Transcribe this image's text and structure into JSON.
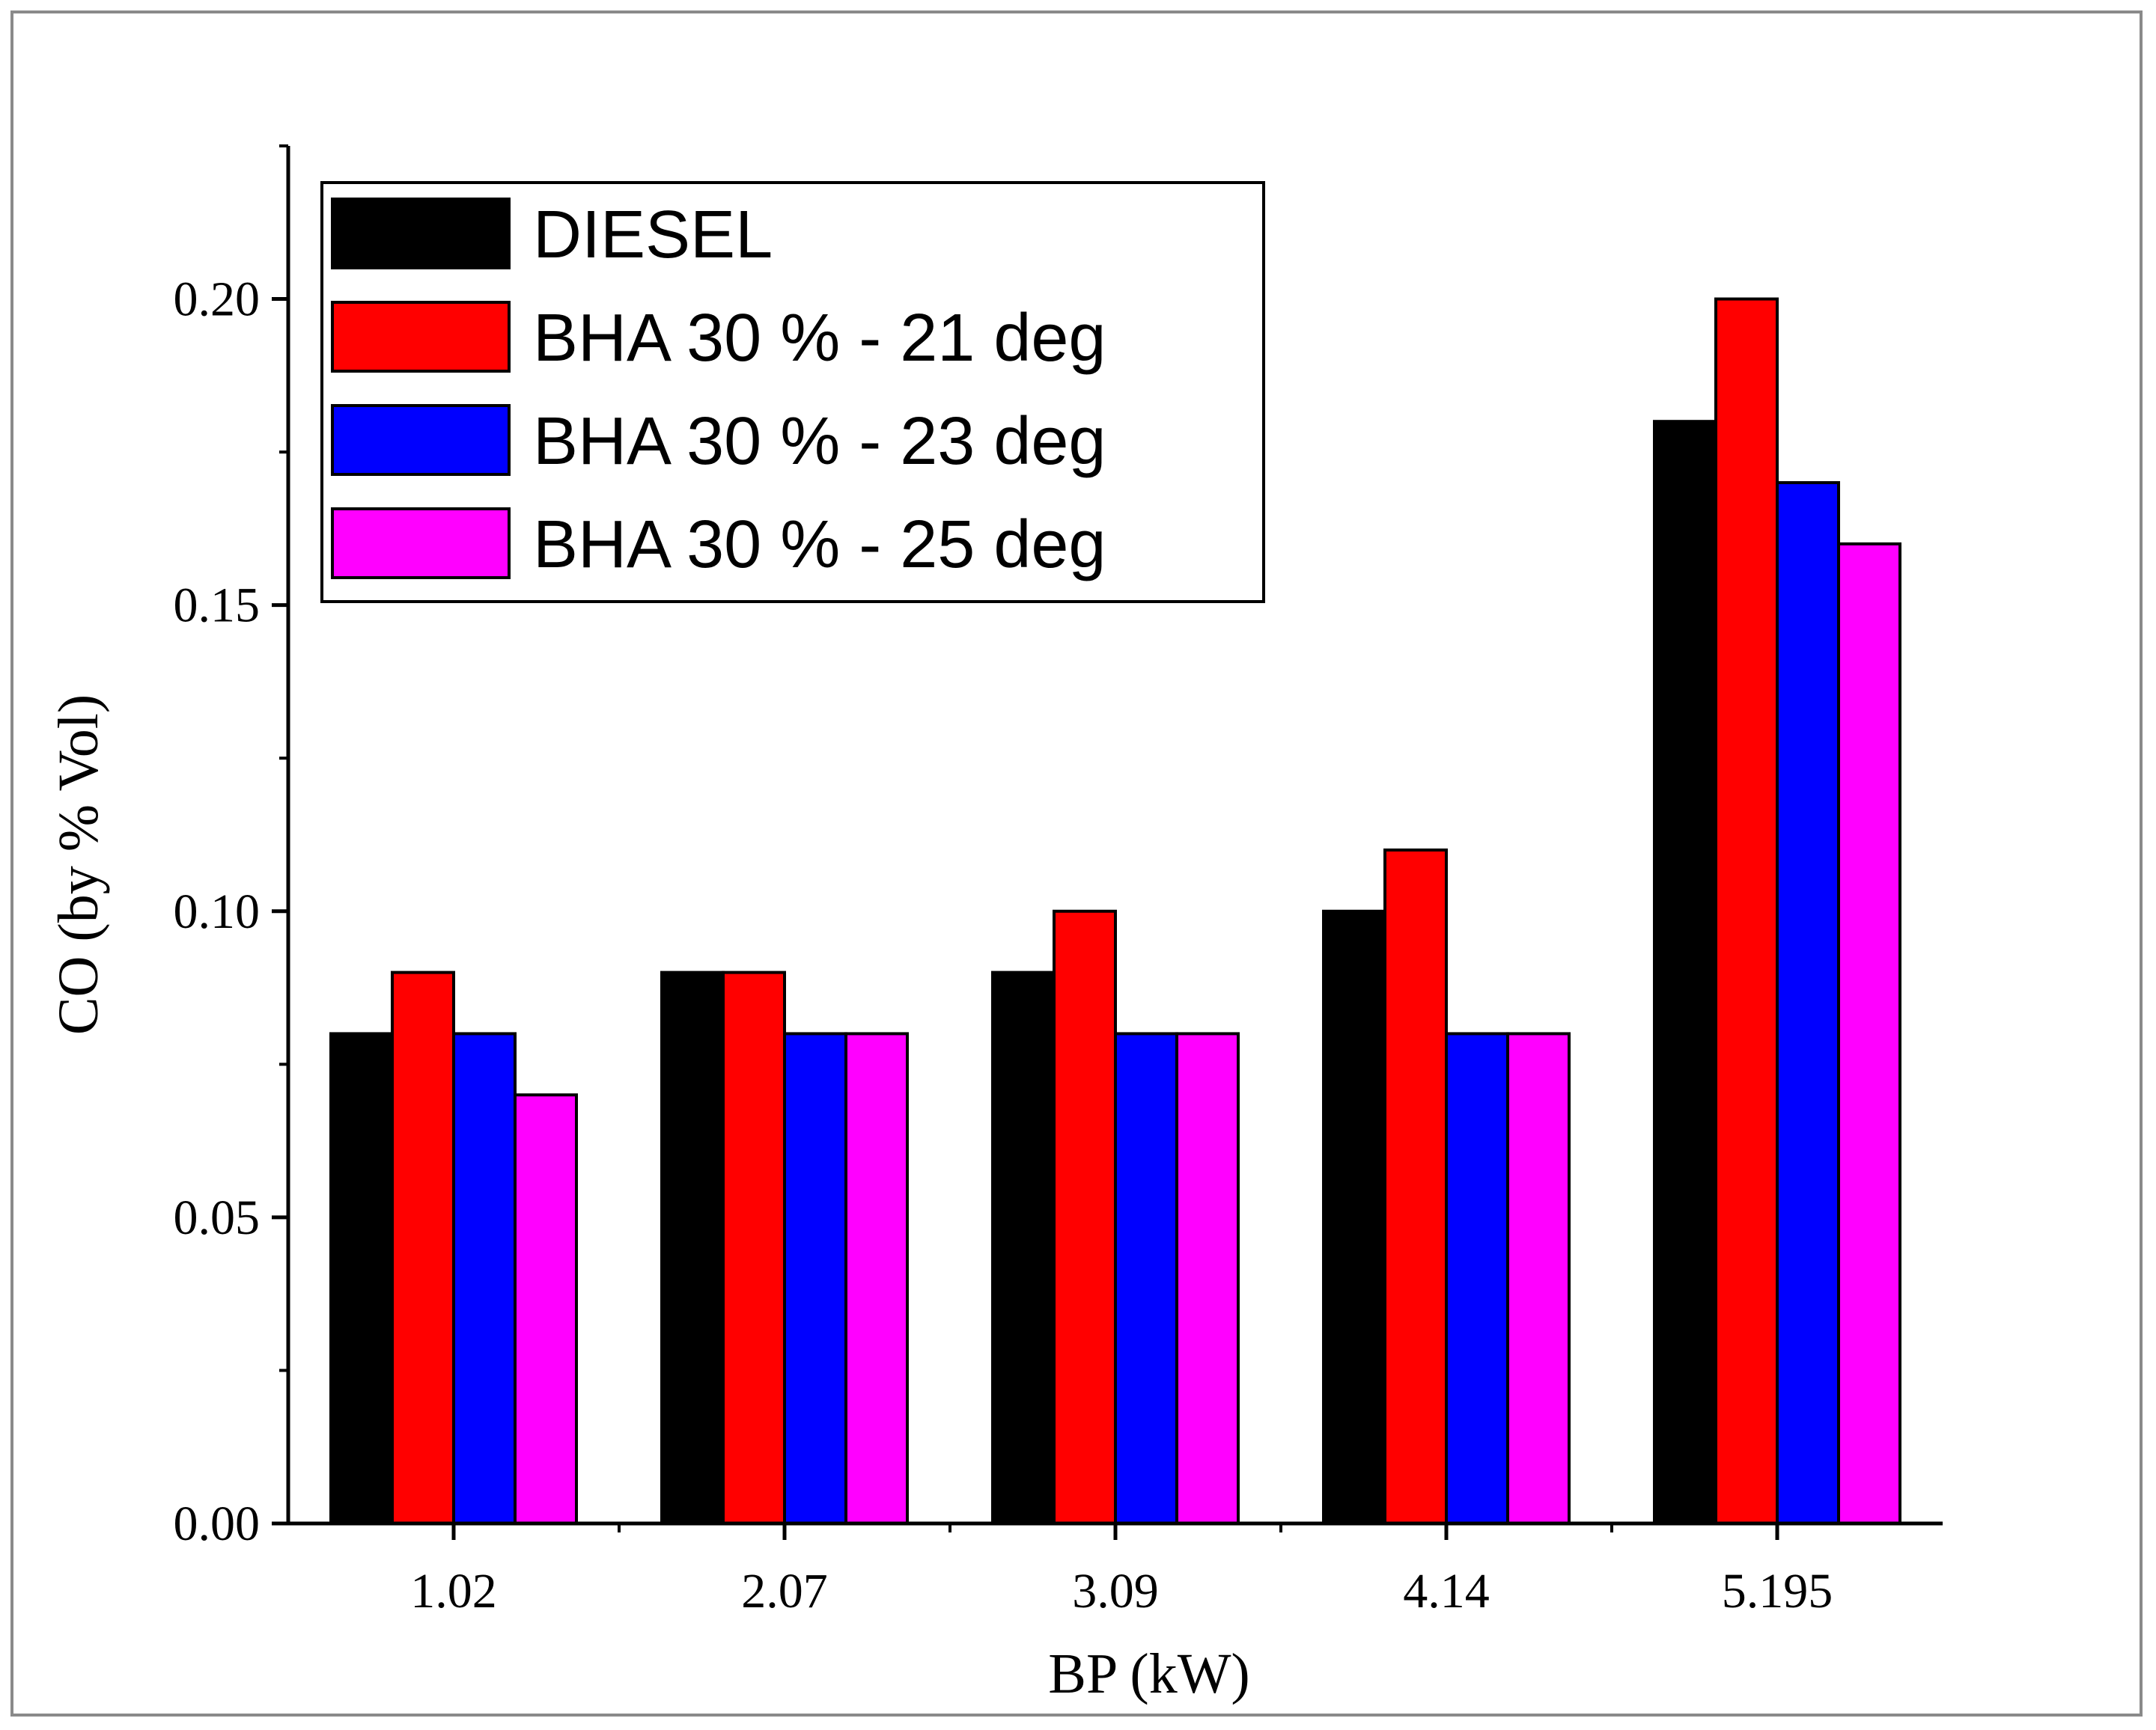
{
  "chart_data": {
    "type": "bar",
    "title": "",
    "xlabel": "BP (kW)",
    "ylabel": "CO (by % Vol)",
    "categories": [
      "1.02",
      "2.07",
      "3.09",
      "4.14",
      "5.195"
    ],
    "ylim": [
      0,
      0.225
    ],
    "yticks": [
      "0.00",
      "0.05",
      "0.10",
      "0.15",
      "0.20"
    ],
    "ytick_values": [
      0,
      0.05,
      0.1,
      0.15,
      0.2
    ],
    "legend_position": "top-left",
    "series": [
      {
        "name": "DIESEL",
        "color": "#000000",
        "values": [
          0.08,
          0.09,
          0.09,
          0.1,
          0.18
        ]
      },
      {
        "name": "BHA 30 % - 21 deg",
        "color": "#ff0000",
        "values": [
          0.09,
          0.09,
          0.1,
          0.11,
          0.2
        ]
      },
      {
        "name": "BHA 30 % - 23 deg",
        "color": "#0000ff",
        "values": [
          0.08,
          0.08,
          0.08,
          0.08,
          0.17
        ]
      },
      {
        "name": "BHA 30 % - 25 deg",
        "color": "#ff00ff",
        "values": [
          0.07,
          0.08,
          0.08,
          0.08,
          0.16
        ]
      }
    ]
  }
}
